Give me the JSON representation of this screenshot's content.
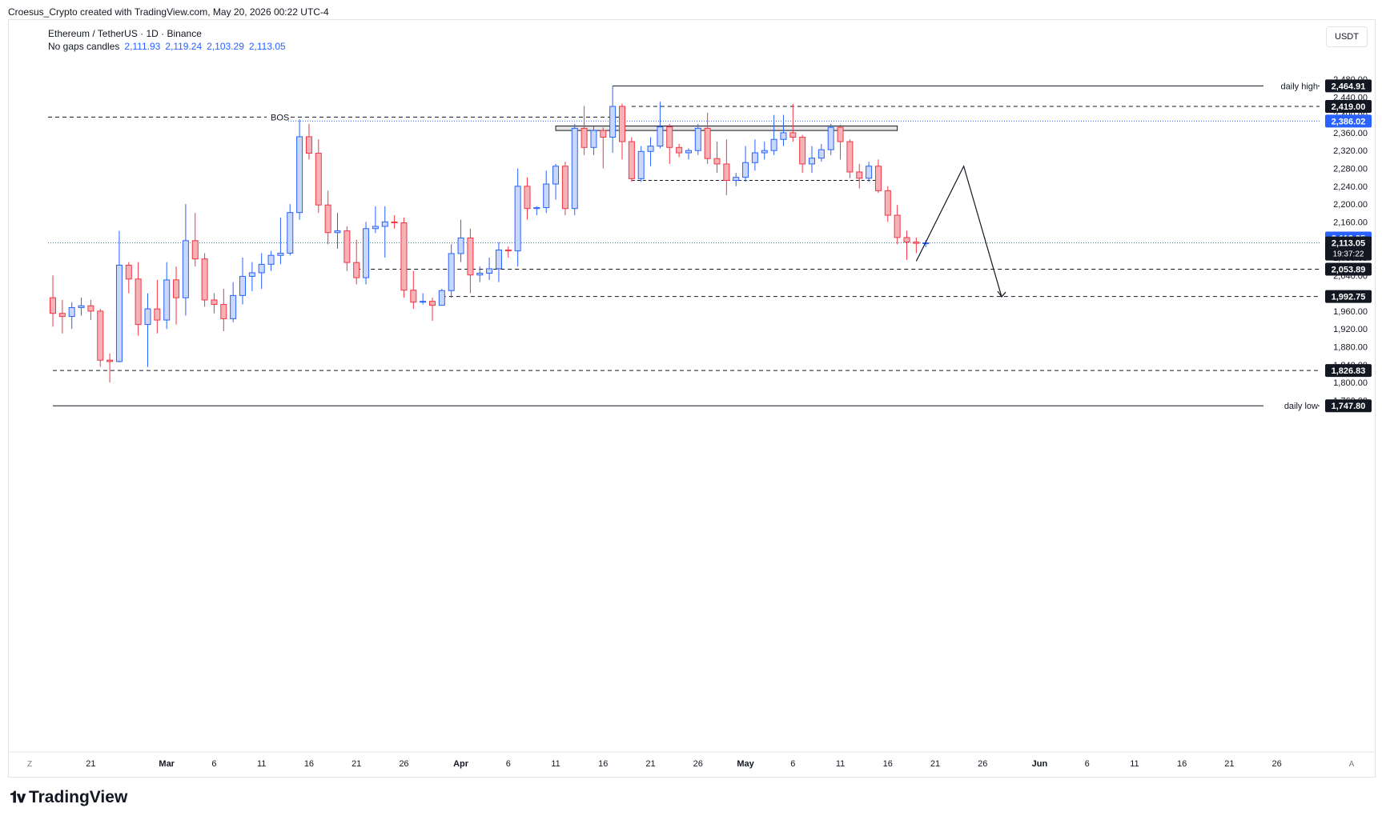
{
  "header": {
    "credit": "Croesus_Crypto created with TradingView.com, May 20, 2026 00:22 UTC-4"
  },
  "legend": {
    "symbol": "Ethereum / TetherUS · 1D · Binance",
    "ohlc_label": "No gaps candles",
    "open": "2,111.93",
    "high": "2,119.24",
    "low": "2,103.29",
    "close": "2,113.05"
  },
  "currency_button": "USDT",
  "footer": {
    "brand": "TradingView"
  },
  "axis_corner": {
    "left": "Z",
    "right": "A"
  },
  "colors": {
    "up": "#2962ff",
    "up_fill": "#c9d7fb",
    "down": "#f23645",
    "down_fill": "#f7b2b8",
    "price_line": "#2962ff",
    "tag_dark": "#131722"
  },
  "chart_data": {
    "type": "candlestick",
    "symbol": "Ethereum / TetherUS",
    "interval": "1D",
    "exchange": "Binance",
    "ylim": [
      1740,
      2490
    ],
    "y_ticks": [
      1760,
      1800,
      1840,
      1880,
      1920,
      1960,
      2000,
      2040,
      2080,
      2120,
      2160,
      2200,
      2240,
      2280,
      2320,
      2360,
      2400,
      2440,
      2480
    ],
    "y_tick_labels": [
      "1,760.00",
      "1,800.00",
      "1,840.00",
      "1,880.00",
      "1,920.00",
      "1,960.00",
      "2,000.00",
      "2,040.00",
      "2,080.00",
      "2,120.00",
      "2,160.00",
      "2,200.00",
      "2,240.00",
      "2,280.00",
      "2,320.00",
      "2,360.00",
      "2,400.00",
      "2,440.00",
      "2,480.00"
    ],
    "x_range": [
      "2026-02-17",
      "2026-06-28"
    ],
    "x_ticks": [
      {
        "date": "2026-02-21",
        "label": "21"
      },
      {
        "date": "2026-03-01",
        "label": "Mar",
        "bold": true
      },
      {
        "date": "2026-03-06",
        "label": "6"
      },
      {
        "date": "2026-03-11",
        "label": "11"
      },
      {
        "date": "2026-03-16",
        "label": "16"
      },
      {
        "date": "2026-03-21",
        "label": "21"
      },
      {
        "date": "2026-03-26",
        "label": "26"
      },
      {
        "date": "2026-04-01",
        "label": "Apr",
        "bold": true
      },
      {
        "date": "2026-04-06",
        "label": "6"
      },
      {
        "date": "2026-04-11",
        "label": "11"
      },
      {
        "date": "2026-04-16",
        "label": "16"
      },
      {
        "date": "2026-04-21",
        "label": "21"
      },
      {
        "date": "2026-04-26",
        "label": "26"
      },
      {
        "date": "2026-05-01",
        "label": "May",
        "bold": true
      },
      {
        "date": "2026-05-06",
        "label": "6"
      },
      {
        "date": "2026-05-11",
        "label": "11"
      },
      {
        "date": "2026-05-16",
        "label": "16"
      },
      {
        "date": "2026-05-21",
        "label": "21"
      },
      {
        "date": "2026-05-26",
        "label": "26"
      },
      {
        "date": "2026-06-01",
        "label": "Jun",
        "bold": true
      },
      {
        "date": "2026-06-06",
        "label": "6"
      },
      {
        "date": "2026-06-11",
        "label": "11"
      },
      {
        "date": "2026-06-16",
        "label": "16"
      },
      {
        "date": "2026-06-21",
        "label": "21"
      },
      {
        "date": "2026-06-26",
        "label": "26"
      }
    ],
    "candles": [
      {
        "d": "2026-02-17",
        "o": 1990,
        "h": 2040,
        "l": 1925,
        "c": 1955
      },
      {
        "d": "2026-02-18",
        "o": 1955,
        "h": 1985,
        "l": 1910,
        "c": 1948
      },
      {
        "d": "2026-02-19",
        "o": 1948,
        "h": 1980,
        "l": 1920,
        "c": 1968
      },
      {
        "d": "2026-02-20",
        "o": 1968,
        "h": 1990,
        "l": 1950,
        "c": 1972
      },
      {
        "d": "2026-02-21",
        "o": 1972,
        "h": 1985,
        "l": 1940,
        "c": 1960
      },
      {
        "d": "2026-02-22",
        "o": 1960,
        "h": 1965,
        "l": 1835,
        "c": 1850
      },
      {
        "d": "2026-02-23",
        "o": 1850,
        "h": 1865,
        "l": 1800,
        "c": 1847
      },
      {
        "d": "2026-02-24",
        "o": 1847,
        "h": 2140,
        "l": 1845,
        "c": 2063
      },
      {
        "d": "2026-02-25",
        "o": 2063,
        "h": 2070,
        "l": 2000,
        "c": 2032
      },
      {
        "d": "2026-02-26",
        "o": 2032,
        "h": 2070,
        "l": 1905,
        "c": 1930
      },
      {
        "d": "2026-02-27",
        "o": 1930,
        "h": 2000,
        "l": 1835,
        "c": 1965
      },
      {
        "d": "2026-02-28",
        "o": 1965,
        "h": 2030,
        "l": 1910,
        "c": 1940
      },
      {
        "d": "2026-03-01",
        "o": 1940,
        "h": 2070,
        "l": 1920,
        "c": 2030
      },
      {
        "d": "2026-03-02",
        "o": 2030,
        "h": 2060,
        "l": 1930,
        "c": 1990
      },
      {
        "d": "2026-03-03",
        "o": 1990,
        "h": 2200,
        "l": 1950,
        "c": 2118
      },
      {
        "d": "2026-03-04",
        "o": 2118,
        "h": 2180,
        "l": 2060,
        "c": 2077
      },
      {
        "d": "2026-03-05",
        "o": 2077,
        "h": 2090,
        "l": 1970,
        "c": 1985
      },
      {
        "d": "2026-03-06",
        "o": 1985,
        "h": 2000,
        "l": 1955,
        "c": 1975
      },
      {
        "d": "2026-03-07",
        "o": 1975,
        "h": 2010,
        "l": 1915,
        "c": 1943
      },
      {
        "d": "2026-03-08",
        "o": 1943,
        "h": 2025,
        "l": 1935,
        "c": 1995
      },
      {
        "d": "2026-03-09",
        "o": 1995,
        "h": 2080,
        "l": 1975,
        "c": 2038
      },
      {
        "d": "2026-03-10",
        "o": 2038,
        "h": 2070,
        "l": 2005,
        "c": 2046
      },
      {
        "d": "2026-03-11",
        "o": 2046,
        "h": 2090,
        "l": 2010,
        "c": 2065
      },
      {
        "d": "2026-03-12",
        "o": 2065,
        "h": 2095,
        "l": 2050,
        "c": 2085
      },
      {
        "d": "2026-03-13",
        "o": 2085,
        "h": 2170,
        "l": 2065,
        "c": 2090
      },
      {
        "d": "2026-03-14",
        "o": 2090,
        "h": 2200,
        "l": 2085,
        "c": 2181
      },
      {
        "d": "2026-03-15",
        "o": 2181,
        "h": 2390,
        "l": 2165,
        "c": 2351
      },
      {
        "d": "2026-03-16",
        "o": 2351,
        "h": 2380,
        "l": 2300,
        "c": 2314
      },
      {
        "d": "2026-03-17",
        "o": 2314,
        "h": 2345,
        "l": 2180,
        "c": 2198
      },
      {
        "d": "2026-03-18",
        "o": 2198,
        "h": 2230,
        "l": 2110,
        "c": 2136
      },
      {
        "d": "2026-03-19",
        "o": 2136,
        "h": 2180,
        "l": 2100,
        "c": 2140
      },
      {
        "d": "2026-03-20",
        "o": 2140,
        "h": 2150,
        "l": 2050,
        "c": 2069
      },
      {
        "d": "2026-03-21",
        "o": 2069,
        "h": 2120,
        "l": 2020,
        "c": 2035
      },
      {
        "d": "2026-03-22",
        "o": 2035,
        "h": 2160,
        "l": 2020,
        "c": 2145
      },
      {
        "d": "2026-03-23",
        "o": 2145,
        "h": 2195,
        "l": 2135,
        "c": 2150
      },
      {
        "d": "2026-03-24",
        "o": 2150,
        "h": 2195,
        "l": 2080,
        "c": 2160
      },
      {
        "d": "2026-03-25",
        "o": 2160,
        "h": 2175,
        "l": 2145,
        "c": 2158
      },
      {
        "d": "2026-03-26",
        "o": 2158,
        "h": 2170,
        "l": 1990,
        "c": 2007
      },
      {
        "d": "2026-03-27",
        "o": 2007,
        "h": 2050,
        "l": 1965,
        "c": 1980
      },
      {
        "d": "2026-03-28",
        "o": 1980,
        "h": 2000,
        "l": 1975,
        "c": 1982
      },
      {
        "d": "2026-03-29",
        "o": 1982,
        "h": 1990,
        "l": 1938,
        "c": 1973
      },
      {
        "d": "2026-03-30",
        "o": 1973,
        "h": 2010,
        "l": 1975,
        "c": 2006
      },
      {
        "d": "2026-03-31",
        "o": 2006,
        "h": 2110,
        "l": 1990,
        "c": 2089
      },
      {
        "d": "2026-04-01",
        "o": 2089,
        "h": 2165,
        "l": 2070,
        "c": 2124
      },
      {
        "d": "2026-04-02",
        "o": 2124,
        "h": 2145,
        "l": 2000,
        "c": 2041
      },
      {
        "d": "2026-04-03",
        "o": 2041,
        "h": 2060,
        "l": 2025,
        "c": 2045
      },
      {
        "d": "2026-04-04",
        "o": 2045,
        "h": 2080,
        "l": 2030,
        "c": 2055
      },
      {
        "d": "2026-04-05",
        "o": 2055,
        "h": 2115,
        "l": 2025,
        "c": 2097
      },
      {
        "d": "2026-04-06",
        "o": 2097,
        "h": 2105,
        "l": 2080,
        "c": 2095
      },
      {
        "d": "2026-04-07",
        "o": 2095,
        "h": 2280,
        "l": 2060,
        "c": 2240
      },
      {
        "d": "2026-04-08",
        "o": 2240,
        "h": 2260,
        "l": 2165,
        "c": 2190
      },
      {
        "d": "2026-04-09",
        "o": 2190,
        "h": 2195,
        "l": 2175,
        "c": 2192
      },
      {
        "d": "2026-04-10",
        "o": 2192,
        "h": 2275,
        "l": 2180,
        "c": 2245
      },
      {
        "d": "2026-04-11",
        "o": 2245,
        "h": 2290,
        "l": 2210,
        "c": 2285
      },
      {
        "d": "2026-04-12",
        "o": 2285,
        "h": 2295,
        "l": 2175,
        "c": 2190
      },
      {
        "d": "2026-04-13",
        "o": 2190,
        "h": 2380,
        "l": 2175,
        "c": 2370
      },
      {
        "d": "2026-04-14",
        "o": 2370,
        "h": 2420,
        "l": 2310,
        "c": 2327
      },
      {
        "d": "2026-04-15",
        "o": 2327,
        "h": 2375,
        "l": 2310,
        "c": 2365
      },
      {
        "d": "2026-04-16",
        "o": 2365,
        "h": 2372,
        "l": 2280,
        "c": 2350
      },
      {
        "d": "2026-04-17",
        "o": 2350,
        "h": 2465,
        "l": 2315,
        "c": 2419
      },
      {
        "d": "2026-04-18",
        "o": 2419,
        "h": 2425,
        "l": 2300,
        "c": 2340
      },
      {
        "d": "2026-04-19",
        "o": 2340,
        "h": 2350,
        "l": 2250,
        "c": 2257
      },
      {
        "d": "2026-04-20",
        "o": 2257,
        "h": 2330,
        "l": 2250,
        "c": 2318
      },
      {
        "d": "2026-04-21",
        "o": 2318,
        "h": 2350,
        "l": 2285,
        "c": 2330
      },
      {
        "d": "2026-04-22",
        "o": 2330,
        "h": 2430,
        "l": 2325,
        "c": 2373
      },
      {
        "d": "2026-04-23",
        "o": 2373,
        "h": 2380,
        "l": 2290,
        "c": 2327
      },
      {
        "d": "2026-04-24",
        "o": 2327,
        "h": 2335,
        "l": 2305,
        "c": 2315
      },
      {
        "d": "2026-04-25",
        "o": 2315,
        "h": 2325,
        "l": 2300,
        "c": 2320
      },
      {
        "d": "2026-04-26",
        "o": 2320,
        "h": 2380,
        "l": 2310,
        "c": 2370
      },
      {
        "d": "2026-04-27",
        "o": 2370,
        "h": 2405,
        "l": 2290,
        "c": 2302
      },
      {
        "d": "2026-04-28",
        "o": 2302,
        "h": 2340,
        "l": 2270,
        "c": 2290
      },
      {
        "d": "2026-04-29",
        "o": 2290,
        "h": 2345,
        "l": 2220,
        "c": 2253
      },
      {
        "d": "2026-04-30",
        "o": 2253,
        "h": 2270,
        "l": 2240,
        "c": 2260
      },
      {
        "d": "2026-05-01",
        "o": 2260,
        "h": 2330,
        "l": 2250,
        "c": 2293
      },
      {
        "d": "2026-05-02",
        "o": 2293,
        "h": 2345,
        "l": 2275,
        "c": 2315
      },
      {
        "d": "2026-05-03",
        "o": 2315,
        "h": 2340,
        "l": 2300,
        "c": 2320
      },
      {
        "d": "2026-05-04",
        "o": 2320,
        "h": 2400,
        "l": 2310,
        "c": 2345
      },
      {
        "d": "2026-05-05",
        "o": 2345,
        "h": 2400,
        "l": 2330,
        "c": 2360
      },
      {
        "d": "2026-05-06",
        "o": 2360,
        "h": 2425,
        "l": 2340,
        "c": 2350
      },
      {
        "d": "2026-05-07",
        "o": 2350,
        "h": 2355,
        "l": 2270,
        "c": 2290
      },
      {
        "d": "2026-05-08",
        "o": 2290,
        "h": 2330,
        "l": 2270,
        "c": 2303
      },
      {
        "d": "2026-05-09",
        "o": 2303,
        "h": 2335,
        "l": 2295,
        "c": 2322
      },
      {
        "d": "2026-05-10",
        "o": 2322,
        "h": 2380,
        "l": 2310,
        "c": 2372
      },
      {
        "d": "2026-05-11",
        "o": 2372,
        "h": 2378,
        "l": 2300,
        "c": 2340
      },
      {
        "d": "2026-05-12",
        "o": 2340,
        "h": 2345,
        "l": 2258,
        "c": 2272
      },
      {
        "d": "2026-05-13",
        "o": 2272,
        "h": 2290,
        "l": 2235,
        "c": 2258
      },
      {
        "d": "2026-05-14",
        "o": 2258,
        "h": 2295,
        "l": 2250,
        "c": 2285
      },
      {
        "d": "2026-05-15",
        "o": 2285,
        "h": 2300,
        "l": 2225,
        "c": 2230
      },
      {
        "d": "2026-05-16",
        "o": 2230,
        "h": 2240,
        "l": 2160,
        "c": 2175
      },
      {
        "d": "2026-05-17",
        "o": 2175,
        "h": 2198,
        "l": 2110,
        "c": 2125
      },
      {
        "d": "2026-05-18",
        "o": 2125,
        "h": 2140,
        "l": 2075,
        "c": 2115
      },
      {
        "d": "2026-05-19",
        "o": 2115,
        "h": 2125,
        "l": 2090,
        "c": 2112
      },
      {
        "d": "2026-05-20",
        "o": 2111.93,
        "h": 2119.24,
        "l": 2103.29,
        "c": 2113.05
      }
    ],
    "levels": [
      {
        "name": "daily-high",
        "price": 2464.91,
        "label": "daily high",
        "tag": "2,464.91",
        "style": "solid",
        "from": "2026-04-17",
        "tag_style": "dark"
      },
      {
        "name": "high-2419",
        "price": 2419.0,
        "tag": "2,419.00",
        "style": "dashed",
        "from": "2026-04-19",
        "tag_style": "dark"
      },
      {
        "name": "bos-2386",
        "price": 2386.02,
        "label": "BOS",
        "tag": "2,386.02",
        "style": "dashed",
        "from": "2026-02-17",
        "to": "2026-04-18",
        "tag_style": "blue"
      },
      {
        "name": "low-2053",
        "price": 2053.89,
        "tag": "2,053.89",
        "style": "dashed",
        "from": "2026-03-21",
        "tag_style": "dark"
      },
      {
        "name": "low-1992",
        "price": 1992.75,
        "tag": "1,992.75",
        "style": "dashed",
        "from": "2026-03-30",
        "tag_style": "dark"
      },
      {
        "name": "low-1826",
        "price": 1826.83,
        "tag": "1,826.83",
        "style": "dashed",
        "from": "2026-02-17",
        "tag_style": "dark"
      },
      {
        "name": "daily-low",
        "price": 1747.8,
        "label": "daily low",
        "tag": "1,747.80",
        "style": "solid",
        "from": "2026-02-17",
        "tag_style": "dark"
      }
    ],
    "range_box": {
      "from": "2026-04-19",
      "to": "2026-05-15",
      "price": 2253
    },
    "supply_zone": {
      "from": "2026-04-11",
      "to": "2026-05-17",
      "top": 2375,
      "bottom": 2365
    },
    "projection": [
      {
        "d": "2026-05-19",
        "p": 2072
      },
      {
        "d": "2026-05-24",
        "p": 2285
      },
      {
        "d": "2026-05-28",
        "p": 1992
      }
    ],
    "last_price": {
      "price": 2113.05,
      "tag": "2,113.05",
      "countdown": "19:37:22"
    }
  }
}
